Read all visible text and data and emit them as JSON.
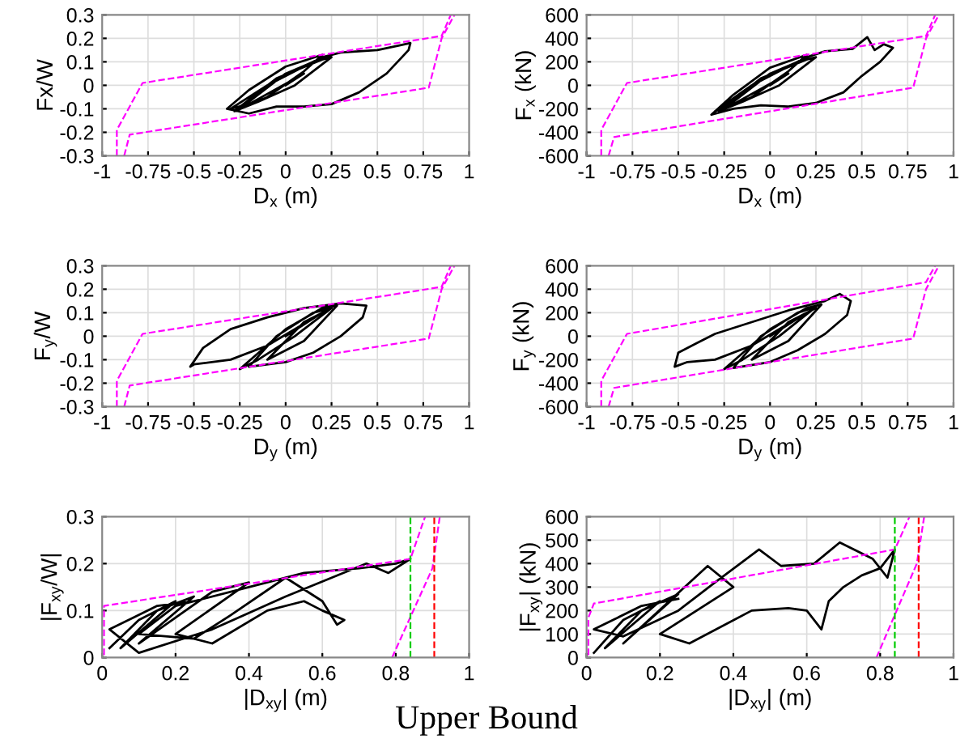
{
  "chart_data": [
    {
      "type": "line",
      "xlabel": "D$_{x}$ (m)",
      "ylabel": "Fx/W",
      "xlim": [
        -1,
        1
      ],
      "ylim": [
        -0.3,
        0.3
      ],
      "xticks": [
        -1,
        -0.75,
        -0.5,
        -0.25,
        0,
        0.25,
        0.5,
        0.75,
        1
      ],
      "yticks": [
        -0.3,
        -0.2,
        -0.1,
        0,
        0.1,
        0.2,
        0.3
      ],
      "grid": true,
      "series": [
        {
          "color": "#000000",
          "line_style": "solid",
          "x": [
            0,
            0.1,
            -0.2,
            -0.3,
            -0.1,
            0.2,
            0.3,
            0.5,
            0.62,
            0.68,
            0.67,
            0.55,
            0.4,
            0.25,
            0.1,
            -0.05,
            -0.2,
            -0.32,
            -0.2,
            0,
            0.2,
            0.1,
            -0.1,
            -0.25,
            0,
            0.15,
            0.25,
            0.05,
            -0.15,
            -0.28,
            -0.05,
            0.2
          ],
          "values": [
            0,
            0.05,
            -0.08,
            -0.1,
            0,
            0.12,
            0.14,
            0.15,
            0.17,
            0.18,
            0.15,
            0.05,
            -0.03,
            -0.08,
            -0.09,
            -0.09,
            -0.12,
            -0.1,
            -0.02,
            0.08,
            0.13,
            0.06,
            -0.05,
            -0.1,
            0.05,
            0.1,
            0.12,
            0.0,
            -0.07,
            -0.11,
            0.03,
            0.11
          ]
        },
        {
          "color": "#ff00ff",
          "line_style": "dashed",
          "x": [
            -0.92,
            -0.92,
            -0.78,
            0.85,
            0.9
          ],
          "values": [
            -0.3,
            -0.19,
            0.01,
            0.21,
            0.3
          ]
        },
        {
          "color": "#ff00ff",
          "line_style": "dashed",
          "x": [
            -0.88,
            -0.85,
            0.78,
            0.85,
            0.92
          ],
          "values": [
            -0.3,
            -0.21,
            -0.01,
            0.2,
            0.3
          ]
        }
      ]
    },
    {
      "type": "line",
      "xlabel": "D$_{x}$ (m)",
      "ylabel": "F$_{x}$ (kN)",
      "xlim": [
        -1,
        1
      ],
      "ylim": [
        -600,
        600
      ],
      "xticks": [
        -1,
        -0.75,
        -0.5,
        -0.25,
        0,
        0.25,
        0.5,
        0.75,
        1
      ],
      "yticks": [
        -600,
        -400,
        -200,
        0,
        200,
        400,
        600
      ],
      "grid": true,
      "series": [
        {
          "color": "#000000",
          "line_style": "solid",
          "x": [
            0,
            0.1,
            -0.2,
            -0.3,
            -0.1,
            0.2,
            0.3,
            0.45,
            0.53,
            0.57,
            0.62,
            0.67,
            0.6,
            0.5,
            0.4,
            0.25,
            0.1,
            -0.05,
            -0.2,
            -0.32,
            -0.2,
            0,
            0.2,
            0.1,
            -0.1,
            -0.25,
            0,
            0.15,
            0.25,
            0.05,
            -0.15,
            -0.28,
            -0.05,
            0.2
          ],
          "values": [
            0,
            100,
            -160,
            -220,
            0,
            240,
            290,
            310,
            410,
            300,
            350,
            320,
            200,
            80,
            -60,
            -150,
            -180,
            -170,
            -200,
            -250,
            -80,
            150,
            260,
            120,
            -100,
            -200,
            100,
            200,
            240,
            0,
            -140,
            -220,
            60,
            220
          ]
        },
        {
          "color": "#ff00ff",
          "line_style": "dashed",
          "x": [
            -0.92,
            -0.92,
            -0.78,
            0.85,
            0.9
          ],
          "values": [
            -600,
            -380,
            20,
            420,
            600
          ]
        },
        {
          "color": "#ff00ff",
          "line_style": "dashed",
          "x": [
            -0.88,
            -0.85,
            0.78,
            0.85,
            0.92
          ],
          "values": [
            -600,
            -440,
            -20,
            400,
            600
          ]
        }
      ]
    },
    {
      "type": "line",
      "xlabel": "D$_{y}$ (m)",
      "ylabel": "F$_{y}$/W",
      "xlim": [
        -1,
        1
      ],
      "ylim": [
        -0.3,
        0.3
      ],
      "xticks": [
        -1,
        -0.75,
        -0.5,
        -0.25,
        0,
        0.25,
        0.5,
        0.75,
        1
      ],
      "yticks": [
        -0.3,
        -0.2,
        -0.1,
        0,
        0.1,
        0.2,
        0.3
      ],
      "grid": true,
      "series": [
        {
          "color": "#000000",
          "line_style": "solid",
          "x": [
            0,
            0.2,
            -0.1,
            -0.3,
            -0.5,
            -0.52,
            -0.45,
            -0.3,
            -0.1,
            0.1,
            0.3,
            0.44,
            0.42,
            0.3,
            0.15,
            0,
            -0.2,
            -0.05,
            0.15,
            0.25,
            0.05,
            -0.15,
            -0.25,
            0,
            0.2,
            0.28,
            0.1,
            -0.1,
            0.1,
            0.25
          ],
          "values": [
            0,
            0.1,
            -0.04,
            -0.1,
            -0.12,
            -0.13,
            -0.05,
            0.03,
            0.08,
            0.12,
            0.14,
            0.13,
            0.08,
            0.0,
            -0.07,
            -0.11,
            -0.13,
            0.0,
            0.1,
            0.12,
            0.0,
            -0.1,
            -0.14,
            0.03,
            0.12,
            0.13,
            -0.02,
            -0.1,
            0.06,
            0.12
          ]
        },
        {
          "color": "#ff00ff",
          "line_style": "dashed",
          "x": [
            -0.92,
            -0.92,
            -0.78,
            0.85,
            0.9
          ],
          "values": [
            -0.3,
            -0.19,
            0.01,
            0.21,
            0.3
          ]
        },
        {
          "color": "#ff00ff",
          "line_style": "dashed",
          "x": [
            -0.88,
            -0.85,
            0.78,
            0.85,
            0.92
          ],
          "values": [
            -0.3,
            -0.21,
            -0.01,
            0.2,
            0.3
          ]
        }
      ]
    },
    {
      "type": "line",
      "xlabel": "D$_{y}$ (m)",
      "ylabel": "F$_{y}$ (kN)",
      "xlim": [
        -1,
        1
      ],
      "ylim": [
        -600,
        600
      ],
      "xticks": [
        -1,
        -0.75,
        -0.5,
        -0.25,
        0,
        0.25,
        0.5,
        0.75,
        1
      ],
      "yticks": [
        -600,
        -400,
        -200,
        0,
        200,
        400,
        600
      ],
      "grid": true,
      "series": [
        {
          "color": "#000000",
          "line_style": "solid",
          "x": [
            0,
            0.2,
            -0.1,
            -0.3,
            -0.45,
            -0.52,
            -0.5,
            -0.4,
            -0.3,
            -0.1,
            0.1,
            0.3,
            0.38,
            0.44,
            0.42,
            0.3,
            0.15,
            0,
            -0.2,
            -0.05,
            0.15,
            0.25,
            0.05,
            -0.15,
            -0.25,
            0,
            0.2,
            0.28,
            0.1,
            -0.1,
            0.1,
            0.25
          ],
          "values": [
            0,
            200,
            -80,
            -200,
            -220,
            -260,
            -140,
            -60,
            20,
            120,
            220,
            300,
            360,
            300,
            180,
            20,
            -120,
            -220,
            -270,
            0,
            200,
            250,
            0,
            -200,
            -280,
            60,
            240,
            270,
            -40,
            -200,
            120,
            240
          ]
        },
        {
          "color": "#ff00ff",
          "line_style": "dashed",
          "x": [
            -0.92,
            -0.92,
            -0.78,
            0.85,
            0.9
          ],
          "values": [
            -600,
            -380,
            20,
            460,
            600
          ]
        },
        {
          "color": "#ff00ff",
          "line_style": "dashed",
          "x": [
            -0.88,
            -0.85,
            0.78,
            0.85,
            0.92
          ],
          "values": [
            -600,
            -440,
            -20,
            400,
            600
          ]
        }
      ]
    },
    {
      "type": "line",
      "xlabel": "|D$_{xy}$| (m)",
      "ylabel": "|F$_{xy}$/W|",
      "xlim": [
        0,
        1
      ],
      "ylim": [
        0,
        0.3
      ],
      "xticks": [
        0,
        0.2,
        0.4,
        0.6,
        0.8,
        1
      ],
      "yticks": [
        0,
        0.1,
        0.2,
        0.3
      ],
      "grid": true,
      "ref_lines": [
        {
          "axis": "x",
          "value": 0.84,
          "color": "#00cc00",
          "line_style": "dashed"
        },
        {
          "axis": "x",
          "value": 0.905,
          "color": "#ff0000",
          "line_style": "dashed"
        }
      ],
      "series": [
        {
          "color": "#000000",
          "line_style": "solid",
          "x": [
            0.02,
            0.1,
            0.2,
            0.05,
            0.15,
            0.25,
            0.1,
            0.3,
            0.4,
            0.2,
            0.3,
            0.45,
            0.55,
            0.6,
            0.66,
            0.64,
            0.6,
            0.5,
            0.35,
            0.25,
            0.1,
            0.2,
            0.4,
            0.55,
            0.7,
            0.8,
            0.84,
            0.78,
            0.72,
            0.5,
            0.3,
            0.1,
            0.02,
            0.15,
            0.25
          ],
          "values": [
            0.02,
            0.08,
            0.12,
            0.02,
            0.1,
            0.13,
            0.03,
            0.14,
            0.16,
            0.05,
            0.03,
            0.1,
            0.12,
            0.1,
            0.08,
            0.07,
            0.12,
            0.17,
            0.09,
            0.04,
            0.05,
            0.11,
            0.15,
            0.18,
            0.19,
            0.2,
            0.21,
            0.18,
            0.2,
            0.13,
            0.06,
            0.01,
            0.06,
            0.11,
            0.12
          ]
        },
        {
          "color": "#ff00ff",
          "line_style": "dashed",
          "x": [
            0.005,
            0.005,
            0.84,
            0.88
          ],
          "values": [
            0.005,
            0.11,
            0.21,
            0.3
          ]
        },
        {
          "color": "#ff00ff",
          "line_style": "dashed",
          "x": [
            0.79,
            0.9,
            0.92
          ],
          "values": [
            0,
            0.19,
            0.3
          ]
        }
      ]
    },
    {
      "type": "line",
      "xlabel": "|D$_{xy}$| (m)",
      "ylabel": "|F$_{xy}$| (kN)",
      "xlim": [
        0,
        1
      ],
      "ylim": [
        0,
        600
      ],
      "xticks": [
        0,
        0.2,
        0.4,
        0.6,
        0.8,
        1
      ],
      "yticks": [
        0,
        100,
        200,
        300,
        400,
        500,
        600
      ],
      "grid": true,
      "annotations": [
        "Upper Bound"
      ],
      "ref_lines": [
        {
          "axis": "x",
          "value": 0.84,
          "color": "#00cc00",
          "line_style": "dashed"
        },
        {
          "axis": "x",
          "value": 0.905,
          "color": "#ff0000",
          "line_style": "dashed"
        }
      ],
      "series": [
        {
          "color": "#000000",
          "line_style": "solid",
          "x": [
            0.02,
            0.1,
            0.2,
            0.05,
            0.15,
            0.25,
            0.1,
            0.33,
            0.4,
            0.2,
            0.28,
            0.45,
            0.55,
            0.6,
            0.64,
            0.66,
            0.7,
            0.75,
            0.8,
            0.84,
            0.82,
            0.78,
            0.69,
            0.62,
            0.53,
            0.47,
            0.35,
            0.25,
            0.1,
            0.02,
            0.15,
            0.25
          ],
          "values": [
            20,
            160,
            240,
            40,
            200,
            270,
            60,
            390,
            300,
            100,
            60,
            200,
            210,
            200,
            120,
            240,
            300,
            350,
            380,
            460,
            340,
            420,
            490,
            400,
            390,
            460,
            320,
            200,
            90,
            120,
            220,
            250
          ]
        },
        {
          "color": "#ff00ff",
          "line_style": "dashed",
          "x": [
            0.005,
            0.005,
            0.02,
            0.84,
            0.88
          ],
          "values": [
            10,
            170,
            230,
            460,
            600
          ]
        },
        {
          "color": "#ff00ff",
          "line_style": "dashed",
          "x": [
            0.79,
            0.9,
            0.92
          ],
          "values": [
            0,
            400,
            600
          ]
        }
      ]
    }
  ]
}
